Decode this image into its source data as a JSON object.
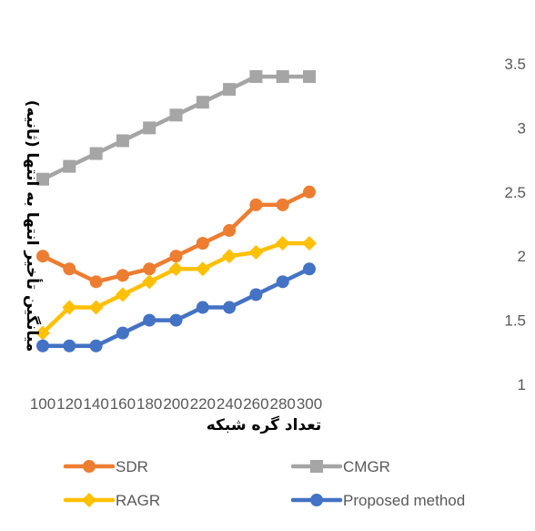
{
  "chart_data": {
    "type": "line",
    "title": "",
    "xlabel": "تعداد گره شبکه",
    "ylabel": "میانگین تأخیر انتها به انتها (ثانیه)",
    "x": [
      100,
      120,
      140,
      160,
      180,
      200,
      220,
      240,
      260,
      280,
      300
    ],
    "y_ticks": [
      "1",
      "1.5",
      "2",
      "2.5",
      "3",
      "3.5"
    ],
    "ylim": [
      1,
      3.5
    ],
    "y_axis_side": "right",
    "grid": false,
    "legend_position": "bottom",
    "series": [
      {
        "name": "SDR",
        "color": "#ED7D31",
        "marker": "circle",
        "values": [
          2.0,
          1.9,
          1.8,
          1.85,
          1.9,
          2.0,
          2.1,
          2.2,
          2.4,
          2.4,
          2.5
        ]
      },
      {
        "name": "CMGR",
        "color": "#A5A5A5",
        "marker": "square",
        "values": [
          2.6,
          2.7,
          2.8,
          2.9,
          3.0,
          3.1,
          3.2,
          3.3,
          3.4,
          3.4,
          3.4
        ]
      },
      {
        "name": "RAGR",
        "color": "#FFC000",
        "marker": "diamond",
        "values": [
          1.4,
          1.6,
          1.6,
          1.7,
          1.8,
          1.9,
          1.9,
          2.0,
          2.03,
          2.1,
          2.1
        ]
      },
      {
        "name": "Proposed method",
        "color": "#4472C4",
        "marker": "circle",
        "values": [
          1.3,
          1.3,
          1.3,
          1.4,
          1.5,
          1.5,
          1.6,
          1.6,
          1.7,
          1.8,
          1.9
        ]
      }
    ]
  }
}
